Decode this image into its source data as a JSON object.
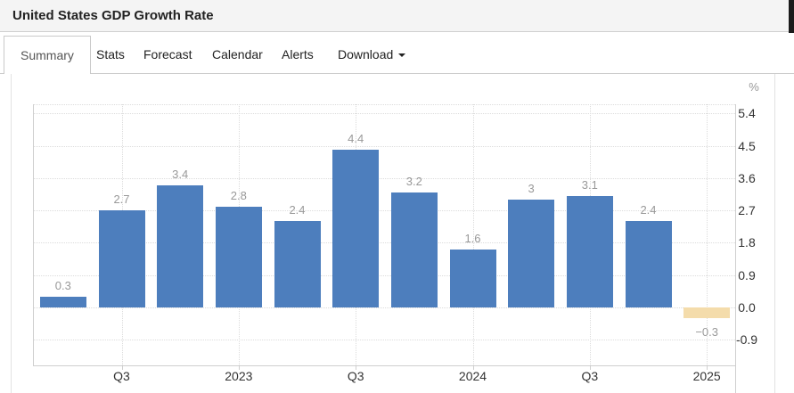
{
  "header": {
    "title": "United States GDP Growth Rate"
  },
  "tabs": {
    "items": [
      {
        "label": "Summary",
        "active": true
      },
      {
        "label": "Stats",
        "active": false
      },
      {
        "label": "Forecast",
        "active": false
      },
      {
        "label": "Calendar",
        "active": false
      },
      {
        "label": "Alerts",
        "active": false
      },
      {
        "label": "Download",
        "active": false,
        "has_caret": true
      }
    ]
  },
  "chart_data": {
    "type": "bar",
    "title": "United States GDP Growth Rate",
    "unit": "%",
    "values": [
      0.3,
      2.7,
      3.4,
      2.8,
      2.4,
      4.4,
      3.2,
      1.6,
      3,
      3.1,
      2.4,
      -0.3
    ],
    "bar_labels": [
      "0.3",
      "2.7",
      "3.4",
      "2.8",
      "2.4",
      "4.4",
      "3.2",
      "1.6",
      "3",
      "3.1",
      "2.4",
      "−0.3"
    ],
    "x_tick_labels": [
      "Q3",
      "2023",
      "Q3",
      "2024",
      "Q3",
      "2025"
    ],
    "x_tick_bar_indices": [
      1,
      3,
      5,
      7,
      9,
      11
    ],
    "y_ticks": [
      5.4,
      4.5,
      3.6,
      2.7,
      1.8,
      0.9,
      0.0,
      -0.9
    ],
    "y_tick_labels": [
      "5.4",
      "4.5",
      "3.6",
      "2.7",
      "1.8",
      "0.9",
      "0.0",
      "-0.9"
    ],
    "ylim": [
      -1.6,
      5.65
    ],
    "grid": "dotted",
    "legend": "none",
    "colors": {
      "positive_bar": "#4d7ebd",
      "negative_bar": "#f4dcab",
      "grid": "#dcdcdc",
      "axis_border": "#cfcfcf",
      "bar_label": "#999999",
      "tick_label": "#333333"
    }
  }
}
